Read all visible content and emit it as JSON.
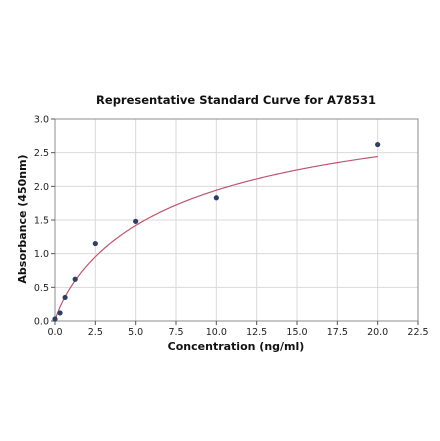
{
  "chart_data": {
    "type": "scatter",
    "title": "Representative Standard Curve for A78531",
    "xlabel": "Concentration (ng/ml)",
    "ylabel": "Absorbance (450nm)",
    "xlim": [
      0,
      22.5
    ],
    "ylim": [
      0,
      3.0
    ],
    "x_ticks": [
      0,
      2.5,
      5,
      7.5,
      10,
      12.5,
      15,
      17.5,
      20,
      22.5
    ],
    "x_tick_labels": [
      "0.0",
      "2.5",
      "5.0",
      "7.5",
      "10.0",
      "12.5",
      "15.0",
      "17.5",
      "20.0",
      "22.5"
    ],
    "y_ticks": [
      0,
      0.5,
      1,
      1.5,
      2,
      2.5,
      3
    ],
    "y_tick_labels": [
      "0.0",
      "0.5",
      "1.0",
      "1.5",
      "2.0",
      "2.5",
      "3.0"
    ],
    "grid": true,
    "series": [
      {
        "points": [
          {
            "x": 0.0,
            "y": 0.03
          },
          {
            "x": 0.313,
            "y": 0.12
          },
          {
            "x": 0.625,
            "y": 0.35
          },
          {
            "x": 1.25,
            "y": 0.62
          },
          {
            "x": 2.5,
            "y": 1.15
          },
          {
            "x": 5.0,
            "y": 1.48
          },
          {
            "x": 10.0,
            "y": 1.83
          },
          {
            "x": 20.0,
            "y": 2.62
          }
        ],
        "color": "#2d3f63"
      }
    ],
    "fit_curve": {
      "color": "#c0566e",
      "x_range": [
        0,
        20
      ],
      "model": "4PL",
      "bottom": 0.0,
      "top": 3.6,
      "ec50": 8.3,
      "hill": 0.85
    }
  }
}
